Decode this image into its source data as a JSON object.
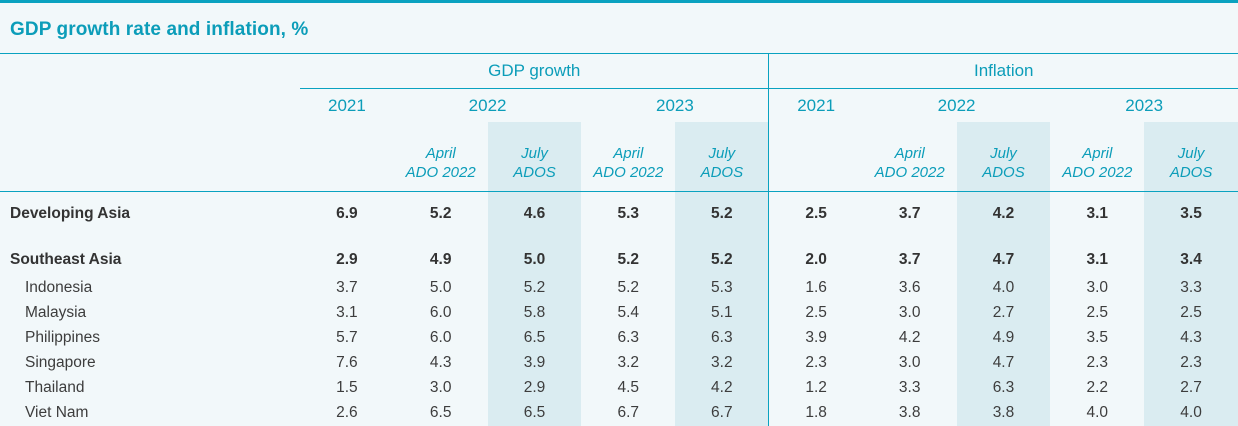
{
  "title": "GDP growth rate and inflation, %",
  "colors": {
    "teal": "#0aa2c0",
    "teal_text": "#0c9db9",
    "highlight_band": "#daecf1",
    "background": "#f2f8fa",
    "data_text": "#3d3d3d"
  },
  "table": {
    "groups": [
      {
        "label": "GDP growth"
      },
      {
        "label": "Inflation"
      }
    ],
    "years": [
      "2021",
      "2022",
      "2023"
    ],
    "subcols": {
      "april": [
        "April",
        "ADO 2022"
      ],
      "july": [
        "July",
        "ADOS"
      ]
    },
    "rows": [
      {
        "label": "Developing Asia",
        "bold": true,
        "indent": false,
        "gdp": [
          "6.9",
          "5.2",
          "4.6",
          "5.3",
          "5.2"
        ],
        "inflation": [
          "2.5",
          "3.7",
          "4.2",
          "3.1",
          "3.5"
        ]
      },
      {
        "label": "Southeast Asia",
        "bold": true,
        "indent": false,
        "gdp": [
          "2.9",
          "4.9",
          "5.0",
          "5.2",
          "5.2"
        ],
        "inflation": [
          "2.0",
          "3.7",
          "4.7",
          "3.1",
          "3.4"
        ]
      },
      {
        "label": "Indonesia",
        "bold": false,
        "indent": true,
        "gdp": [
          "3.7",
          "5.0",
          "5.2",
          "5.2",
          "5.3"
        ],
        "inflation": [
          "1.6",
          "3.6",
          "4.0",
          "3.0",
          "3.3"
        ]
      },
      {
        "label": "Malaysia",
        "bold": false,
        "indent": true,
        "gdp": [
          "3.1",
          "6.0",
          "5.8",
          "5.4",
          "5.1"
        ],
        "inflation": [
          "2.5",
          "3.0",
          "2.7",
          "2.5",
          "2.5"
        ]
      },
      {
        "label": "Philippines",
        "bold": false,
        "indent": true,
        "gdp": [
          "5.7",
          "6.0",
          "6.5",
          "6.3",
          "6.3"
        ],
        "inflation": [
          "3.9",
          "4.2",
          "4.9",
          "3.5",
          "4.3"
        ]
      },
      {
        "label": "Singapore",
        "bold": false,
        "indent": true,
        "gdp": [
          "7.6",
          "4.3",
          "3.9",
          "3.2",
          "3.2"
        ],
        "inflation": [
          "2.3",
          "3.0",
          "4.7",
          "2.3",
          "2.3"
        ]
      },
      {
        "label": "Thailand",
        "bold": false,
        "indent": true,
        "gdp": [
          "1.5",
          "3.0",
          "2.9",
          "4.5",
          "4.2"
        ],
        "inflation": [
          "1.2",
          "3.3",
          "6.3",
          "2.2",
          "2.7"
        ]
      },
      {
        "label": "Viet Nam",
        "bold": false,
        "indent": true,
        "gdp": [
          "2.6",
          "6.5",
          "6.5",
          "6.7",
          "6.7"
        ],
        "inflation": [
          "1.8",
          "3.8",
          "3.8",
          "4.0",
          "4.0"
        ]
      }
    ]
  },
  "chart_data": {
    "type": "table",
    "title": "GDP growth rate and inflation, %",
    "column_groups": [
      "GDP growth",
      "Inflation"
    ],
    "columns_per_group": [
      "2021",
      "2022 April ADO 2022",
      "2022 July ADOS",
      "2023 April ADO 2022",
      "2023 July ADOS"
    ],
    "highlighted_columns": [
      "2022 July ADOS",
      "2023 July ADOS"
    ],
    "rows": [
      {
        "region": "Developing Asia",
        "gdp_growth": [
          6.9,
          5.2,
          4.6,
          5.3,
          5.2
        ],
        "inflation": [
          2.5,
          3.7,
          4.2,
          3.1,
          3.5
        ]
      },
      {
        "region": "Southeast Asia",
        "gdp_growth": [
          2.9,
          4.9,
          5.0,
          5.2,
          5.2
        ],
        "inflation": [
          2.0,
          3.7,
          4.7,
          3.1,
          3.4
        ]
      },
      {
        "region": "Indonesia",
        "gdp_growth": [
          3.7,
          5.0,
          5.2,
          5.2,
          5.3
        ],
        "inflation": [
          1.6,
          3.6,
          4.0,
          3.0,
          3.3
        ]
      },
      {
        "region": "Malaysia",
        "gdp_growth": [
          3.1,
          6.0,
          5.8,
          5.4,
          5.1
        ],
        "inflation": [
          2.5,
          3.0,
          2.7,
          2.5,
          2.5
        ]
      },
      {
        "region": "Philippines",
        "gdp_growth": [
          5.7,
          6.0,
          6.5,
          6.3,
          6.3
        ],
        "inflation": [
          3.9,
          4.2,
          4.9,
          3.5,
          4.3
        ]
      },
      {
        "region": "Singapore",
        "gdp_growth": [
          7.6,
          4.3,
          3.9,
          3.2,
          3.2
        ],
        "inflation": [
          2.3,
          3.0,
          4.7,
          2.3,
          2.3
        ]
      },
      {
        "region": "Thailand",
        "gdp_growth": [
          1.5,
          3.0,
          2.9,
          4.5,
          4.2
        ],
        "inflation": [
          1.2,
          3.3,
          6.3,
          2.2,
          2.7
        ]
      },
      {
        "region": "Viet Nam",
        "gdp_growth": [
          2.6,
          6.5,
          6.5,
          6.7,
          6.7
        ],
        "inflation": [
          1.8,
          3.8,
          3.8,
          4.0,
          4.0
        ]
      }
    ]
  }
}
